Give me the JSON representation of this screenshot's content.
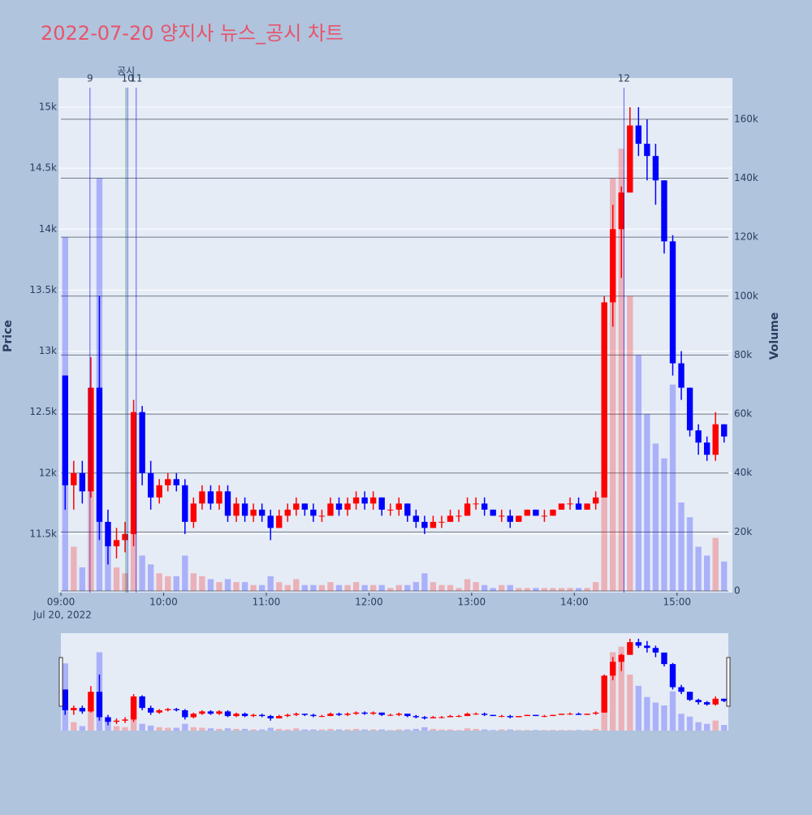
{
  "chart_data": {
    "type": "candlestick",
    "title": "2022-07-20 양지사 뉴스_공시 차트",
    "y_label": "Price",
    "y2_label": "Volume",
    "x": [
      "09:00",
      "09:05",
      "09:10",
      "09:15",
      "09:20",
      "09:25",
      "09:30",
      "09:35",
      "09:40",
      "09:45",
      "09:50",
      "09:55",
      "10:00",
      "10:05",
      "10:10",
      "10:15",
      "10:20",
      "10:25",
      "10:30",
      "10:35",
      "10:40",
      "10:45",
      "10:50",
      "10:55",
      "11:00",
      "11:05",
      "11:10",
      "11:15",
      "11:20",
      "11:25",
      "11:30",
      "11:35",
      "11:40",
      "11:45",
      "11:50",
      "11:55",
      "12:00",
      "12:05",
      "12:10",
      "12:15",
      "12:20",
      "12:25",
      "12:30",
      "12:35",
      "12:40",
      "12:45",
      "12:50",
      "12:55",
      "13:00",
      "13:05",
      "13:10",
      "13:15",
      "13:20",
      "13:25",
      "13:30",
      "13:35",
      "13:40",
      "13:45",
      "13:50",
      "13:55",
      "14:00",
      "14:05",
      "14:10",
      "14:15",
      "14:20",
      "14:25",
      "14:30",
      "14:35",
      "14:40",
      "14:45",
      "14:50",
      "14:55",
      "15:00",
      "15:05",
      "15:10",
      "15:15",
      "15:20",
      "15:25"
    ],
    "open": [
      12800,
      11900,
      12000,
      11850,
      12700,
      11600,
      11400,
      11450,
      11500,
      12500,
      12000,
      11800,
      11900,
      11950,
      11900,
      11600,
      11750,
      11850,
      11750,
      11850,
      11650,
      11750,
      11650,
      11700,
      11650,
      11550,
      11650,
      11700,
      11750,
      11700,
      11650,
      11650,
      11750,
      11700,
      11750,
      11800,
      11750,
      11800,
      11700,
      11700,
      11750,
      11650,
      11600,
      11550,
      11600,
      11600,
      11650,
      11650,
      11750,
      11750,
      11700,
      11650,
      11650,
      11600,
      11650,
      11700,
      11650,
      11650,
      11700,
      11750,
      11750,
      11700,
      11750,
      11800,
      13400,
      14000,
      14300,
      14850,
      14700,
      14600,
      14400,
      13900,
      12900,
      12700,
      12350,
      12250,
      12150,
      12400
    ],
    "high": [
      12800,
      12100,
      12100,
      12950,
      13450,
      11700,
      11550,
      11600,
      12600,
      12550,
      12100,
      11950,
      12000,
      12000,
      11950,
      11800,
      11900,
      11900,
      11900,
      11900,
      11800,
      11800,
      11750,
      11750,
      11700,
      11700,
      11750,
      11800,
      11750,
      11750,
      11700,
      11800,
      11800,
      11800,
      11850,
      11850,
      11850,
      11800,
      11750,
      11800,
      11750,
      11700,
      11650,
      11650,
      11650,
      11700,
      11700,
      11800,
      11800,
      11800,
      11700,
      11700,
      11700,
      11650,
      11700,
      11700,
      11700,
      11700,
      11750,
      11800,
      11800,
      11750,
      11850,
      13450,
      14200,
      14350,
      15000,
      15000,
      14900,
      14700,
      14400,
      13950,
      13000,
      12700,
      12400,
      12300,
      12500,
      12400
    ],
    "low": [
      11700,
      11700,
      11750,
      11800,
      11450,
      11250,
      11300,
      11350,
      11400,
      11900,
      11700,
      11750,
      11850,
      11850,
      11500,
      11550,
      11700,
      11700,
      11700,
      11600,
      11600,
      11600,
      11600,
      11600,
      11450,
      11550,
      11600,
      11650,
      11650,
      11600,
      11600,
      11650,
      11650,
      11650,
      11700,
      11700,
      11700,
      11650,
      11650,
      11650,
      11600,
      11550,
      11500,
      11550,
      11550,
      11600,
      11600,
      11650,
      11700,
      11650,
      11650,
      11600,
      11550,
      11600,
      11650,
      11650,
      11600,
      11650,
      11700,
      11700,
      11700,
      11700,
      11700,
      11800,
      13200,
      13600,
      14300,
      14600,
      14400,
      14200,
      13800,
      12800,
      12600,
      12300,
      12150,
      12100,
      12100,
      12250
    ],
    "close": [
      11900,
      12000,
      11850,
      12700,
      11600,
      11400,
      11450,
      11500,
      12500,
      12000,
      11800,
      11900,
      11950,
      11900,
      11600,
      11750,
      11850,
      11750,
      11850,
      11650,
      11750,
      11650,
      11700,
      11650,
      11550,
      11650,
      11700,
      11750,
      11700,
      11650,
      11650,
      11750,
      11700,
      11750,
      11800,
      11750,
      11800,
      11700,
      11700,
      11750,
      11650,
      11600,
      11550,
      11600,
      11600,
      11650,
      11650,
      11750,
      11750,
      11700,
      11650,
      11650,
      11600,
      11650,
      11700,
      11650,
      11650,
      11700,
      11750,
      11750,
      11700,
      11750,
      11800,
      13400,
      14000,
      14300,
      14850,
      14700,
      14600,
      14400,
      13900,
      12900,
      12700,
      12350,
      12250,
      12150,
      12400,
      12300
    ],
    "volume": [
      120000,
      15000,
      8000,
      60000,
      140000,
      20000,
      8000,
      6000,
      60000,
      12000,
      9000,
      6000,
      5000,
      5000,
      12000,
      6000,
      5000,
      4000,
      3000,
      4000,
      3000,
      3000,
      2000,
      2000,
      5000,
      3000,
      2000,
      4000,
      2000,
      2000,
      2000,
      3000,
      2000,
      2000,
      3000,
      2000,
      2000,
      2000,
      1000,
      2000,
      2000,
      3000,
      6000,
      3000,
      2000,
      2000,
      1000,
      4000,
      3000,
      2000,
      1000,
      2000,
      2000,
      1000,
      1000,
      1000,
      1000,
      1000,
      1000,
      1000,
      1000,
      1000,
      3000,
      60000,
      140000,
      150000,
      100000,
      80000,
      60000,
      50000,
      45000,
      70000,
      30000,
      25000,
      15000,
      12000,
      18000,
      10000
    ],
    "increasing_color": "#ff0000",
    "decreasing_color": "#0000ff",
    "vlines": [
      {
        "x": "09:17",
        "label": "9",
        "color": "#0000ff"
      },
      {
        "x": "09:39",
        "label": "10",
        "color": "#0000ff"
      },
      {
        "x": "09:38",
        "label": "공시",
        "color": "#008000"
      },
      {
        "x": "09:44",
        "label": "11",
        "color": "#0000ff"
      },
      {
        "x": "14:29",
        "label": "12",
        "color": "#0000ff"
      }
    ],
    "xlim": [
      "09:00",
      "15:30"
    ],
    "xticks": [
      "09:00",
      "10:00",
      "11:00",
      "12:00",
      "13:00",
      "14:00",
      "15:00"
    ],
    "x_date_label": "Jul 20, 2022",
    "ylim": [
      11020,
      15240
    ],
    "yticks": [
      {
        "value": 11500,
        "label": "11.5k"
      },
      {
        "value": 12000,
        "label": "12k"
      },
      {
        "value": 12500,
        "label": "12.5k"
      },
      {
        "value": 13000,
        "label": "13k"
      },
      {
        "value": 13500,
        "label": "13.5k"
      },
      {
        "value": 14000,
        "label": "14k"
      },
      {
        "value": 14500,
        "label": "14.5k"
      },
      {
        "value": 15000,
        "label": "15k"
      }
    ],
    "y2lim": [
      0,
      174000
    ],
    "y2ticks": [
      0,
      {
        "value": 20000,
        "label": "20k"
      },
      {
        "value": 40000,
        "label": "40k"
      },
      {
        "value": 60000,
        "label": "60k"
      },
      {
        "value": 80000,
        "label": "80k"
      },
      {
        "value": 100000,
        "label": "100k"
      },
      {
        "value": 120000,
        "label": "120k"
      },
      {
        "value": 140000,
        "label": "140k"
      },
      {
        "value": 160000,
        "label": "160k"
      }
    ],
    "grid": true,
    "range_slider": true
  }
}
